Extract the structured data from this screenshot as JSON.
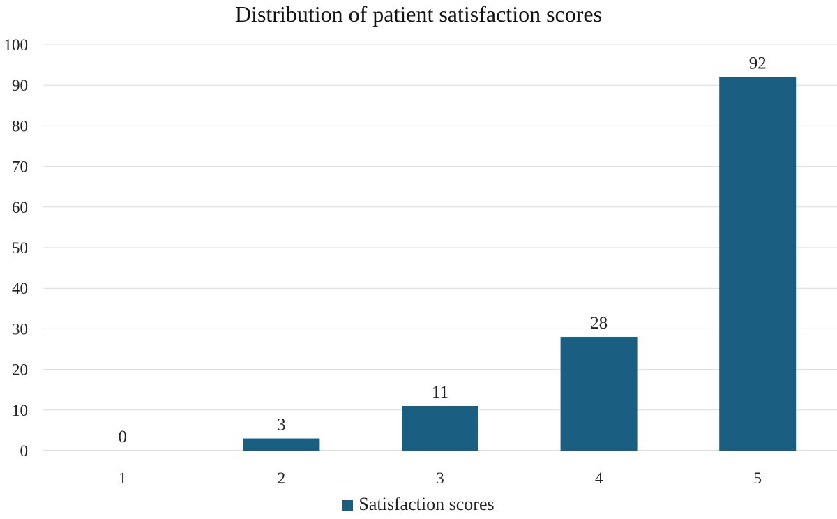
{
  "chart_data": {
    "type": "bar",
    "title": "Distribution of patient satisfaction scores",
    "categories": [
      "1",
      "2",
      "3",
      "4",
      "5"
    ],
    "series": [
      {
        "name": "Satisfaction scores",
        "values": [
          0,
          3,
          11,
          28,
          92
        ],
        "color": "#1a5e82"
      }
    ],
    "data_labels": [
      "0",
      "3",
      "11",
      "28",
      "92"
    ],
    "y_ticks": [
      "0",
      "10",
      "20",
      "30",
      "40",
      "50",
      "60",
      "70",
      "80",
      "90",
      "100"
    ],
    "ylim": [
      0,
      100
    ],
    "grid": true,
    "legend": "bottom"
  }
}
